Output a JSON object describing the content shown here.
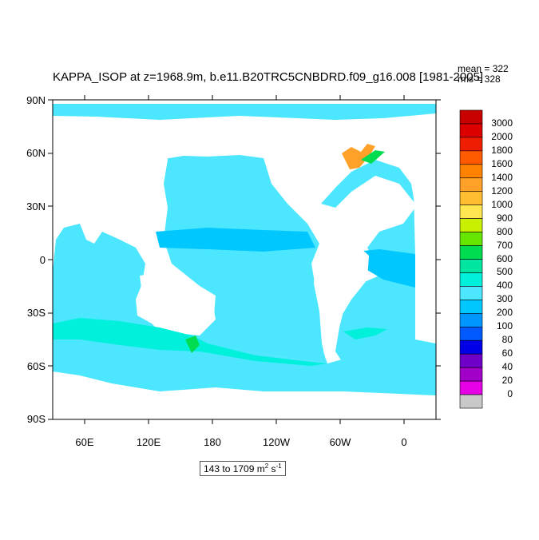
{
  "title": "KAPPA_ISOP at z=1968.9m, b.e11.B20TRC5CNBDRD.f09_g16.008 [1981-2005]",
  "stats": {
    "mean": "mean = 322",
    "rms": "rms = 328"
  },
  "range_label_prefix": "143 to 1709 m",
  "range_label_sup1": "2",
  "range_label_mid": " s",
  "range_label_sup2": "-1",
  "lat_labels": [
    "90N",
    "60N",
    "30N",
    "0",
    "30S",
    "60S",
    "90S"
  ],
  "lon_labels": [
    "60E",
    "120E",
    "180",
    "120W",
    "60W",
    "0"
  ],
  "colorbar": {
    "labels": [
      "3000",
      "2000",
      "1800",
      "1600",
      "1400",
      "1200",
      "1000",
      "900",
      "800",
      "700",
      "600",
      "500",
      "400",
      "300",
      "200",
      "100",
      "80",
      "60",
      "40",
      "20",
      "0"
    ],
    "colors": [
      "#c80000",
      "#dc0000",
      "#f01e00",
      "#ff5a00",
      "#ff8200",
      "#ffa028",
      "#ffbe32",
      "#ffe650",
      "#c8f000",
      "#64e600",
      "#00dc50",
      "#00e6a0",
      "#00f0dc",
      "#4ce6ff",
      "#00c8ff",
      "#0096ff",
      "#005aff",
      "#0000e6",
      "#6e00c8",
      "#a000c8",
      "#e600e6",
      "#c8c8c8"
    ]
  },
  "colors": {
    "ocean_base": "#4ce6ff",
    "ocean_deep": "#00c8ff",
    "ocean_high": "#00f0dc",
    "land": "#ffffff"
  }
}
